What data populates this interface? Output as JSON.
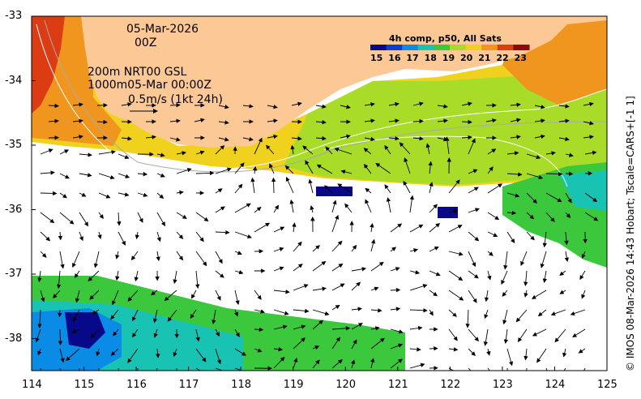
{
  "map": {
    "date_line": "05-Mar-2026",
    "hour_line": "00Z",
    "product_line1": "200m  NRT00 GSL",
    "product_line2": "1000m05-Mar 00:00Z",
    "scale_label": "0.5m/s (1kt 24h)",
    "colorbar_title": "4h comp, p50, All Sats",
    "colorbar_ticks": [
      "15",
      "16",
      "17",
      "18",
      "19",
      "20",
      "21",
      "22",
      "23"
    ],
    "colorbar_colors": [
      "#08088a",
      "#0a3fd2",
      "#0a8ce6",
      "#18c3b4",
      "#3cc83c",
      "#a8dc28",
      "#f0d21e",
      "#f0961e",
      "#dc3c14",
      "#8c0a0a"
    ],
    "x_ticks": [
      "114",
      "115",
      "116",
      "117",
      "118",
      "119",
      "120",
      "121",
      "122",
      "123",
      "124",
      "125"
    ],
    "y_ticks": [
      "-33",
      "-34",
      "-35",
      "-36",
      "-37",
      "-38"
    ],
    "side_caption": "© IMOS 08-Mar-2026 14:43 Hobart; Tscale=CARS+[-1 1]",
    "land_color": "#fcc896"
  }
}
